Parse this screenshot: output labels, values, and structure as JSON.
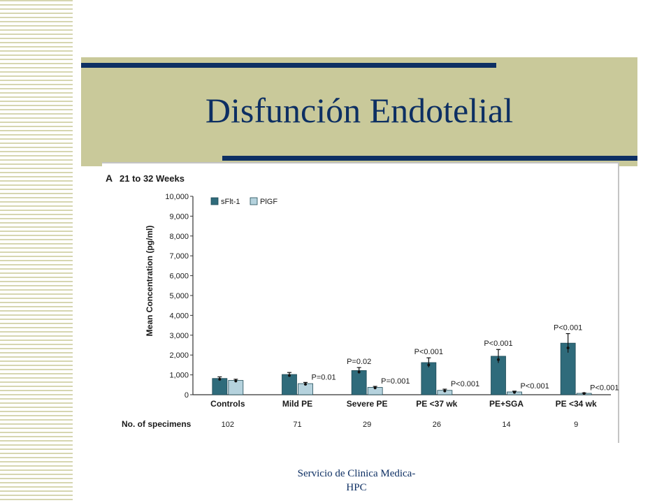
{
  "slide": {
    "title": "Disfunción Endotelial",
    "footer_line1": "Servicio de Clinica Medica-",
    "footer_line2": "HPC"
  },
  "colors": {
    "band": "#c9c99a",
    "title": "#0d2f63",
    "rule": "#0d2f63",
    "series_sflt": "#2f6b7b",
    "series_plgf": "#b5d2dd"
  },
  "chart_data": {
    "type": "bar",
    "panel_label": "A",
    "title": "21 to 32 Weeks",
    "ylabel": "Mean Concentration (pg/ml)",
    "xlabel": "",
    "ylim": [
      0,
      10000
    ],
    "yticks": [
      0,
      1000,
      2000,
      3000,
      4000,
      5000,
      6000,
      7000,
      8000,
      9000,
      10000
    ],
    "ytick_labels": [
      "0",
      "1,000",
      "2,000",
      "3,000",
      "4,000",
      "5,000",
      "6,000",
      "7,000",
      "8,000",
      "9,000",
      "10,000"
    ],
    "categories": [
      "Controls",
      "Mild PE",
      "Severe PE",
      "PE <37 wk",
      "PE+SGA",
      "PE <34 wk"
    ],
    "series": [
      {
        "name": "sFlt-1",
        "values": [
          820,
          1020,
          1220,
          1620,
          1940,
          2600
        ],
        "error": [
          80,
          100,
          150,
          240,
          340,
          480
        ],
        "annotations": [
          "",
          "",
          "P=0.02",
          "P<0.001",
          "P<0.001",
          "P<0.001"
        ]
      },
      {
        "name": "PlGF",
        "values": [
          720,
          560,
          370,
          220,
          140,
          70
        ],
        "error": [
          60,
          60,
          50,
          60,
          40,
          20
        ],
        "annotations": [
          "",
          "P=0.01",
          "P=0.001",
          "P<0.001",
          "P<0.001",
          "P<0.001"
        ]
      }
    ],
    "legend_position": "top-left",
    "specimens_label": "No. of specimens",
    "specimens": [
      "102",
      "71",
      "29",
      "26",
      "14",
      "9"
    ],
    "grid": false
  }
}
